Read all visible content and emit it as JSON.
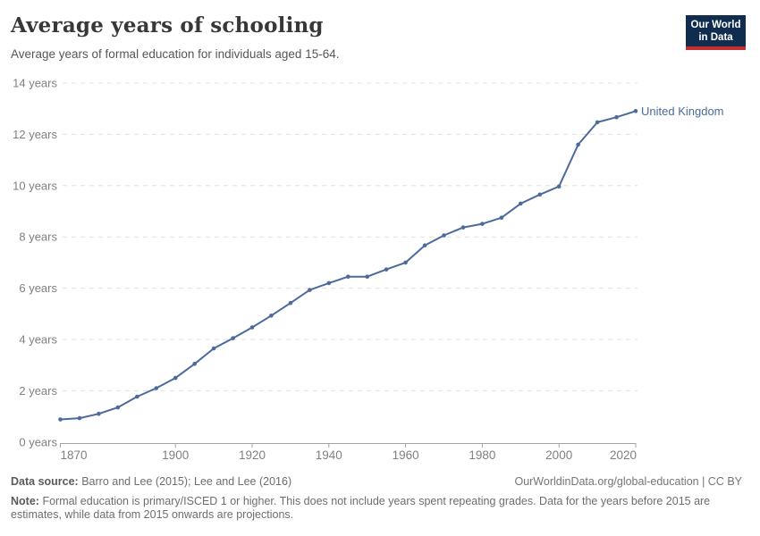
{
  "logo": {
    "line1": "Our World",
    "line2": "in Data",
    "bg_color": "#102d50",
    "accent_color": "#c5302f"
  },
  "header": {
    "title": "Average years of schooling",
    "subtitle": "Average years of formal education for individuals aged 15-64."
  },
  "chart_data": {
    "type": "line",
    "title": "Average years of schooling",
    "subtitle": "Average years of formal education for individuals aged 15-64.",
    "x": [
      1870,
      1875,
      1880,
      1885,
      1890,
      1895,
      1900,
      1905,
      1910,
      1915,
      1920,
      1925,
      1930,
      1935,
      1940,
      1945,
      1950,
      1955,
      1960,
      1965,
      1970,
      1975,
      1980,
      1985,
      1990,
      1995,
      2000,
      2005,
      2010,
      2015,
      2020
    ],
    "series": [
      {
        "name": "United Kingdom",
        "color": "#4C6A9C",
        "values": [
          0.88,
          0.93,
          1.1,
          1.35,
          1.77,
          2.1,
          2.5,
          3.05,
          3.65,
          4.05,
          4.47,
          4.93,
          5.42,
          5.93,
          6.2,
          6.45,
          6.45,
          6.73,
          7.0,
          7.67,
          8.06,
          8.37,
          8.51,
          8.75,
          9.3,
          9.65,
          9.97,
          11.6,
          12.47,
          12.67,
          12.91
        ]
      }
    ],
    "xlim": [
      1870,
      2020
    ],
    "ylim": [
      0,
      14
    ],
    "yticks": [
      0,
      2,
      4,
      6,
      8,
      10,
      12,
      14
    ],
    "ytick_suffix": " years",
    "xticks": [
      1870,
      1900,
      1920,
      1940,
      1960,
      1980,
      2000,
      2020
    ],
    "grid": "horizontal-dashed",
    "legend": "end-of-line-label",
    "colors": {
      "grid": "#e0e0e0",
      "axis": "#a3a3a3",
      "tick_text": "#808080"
    }
  },
  "footer": {
    "source_label": "Data source:",
    "source_text": "Barro and Lee (2015); Lee and Lee (2016)",
    "link": "OurWorldinData.org/global-education | CC BY",
    "note_label": "Note:",
    "note_text": "Formal education is primary/ISCED 1 or higher. This does not include years spent repeating grades. Data for the years before 2015 are estimates, while data from 2015 onwards are projections."
  }
}
